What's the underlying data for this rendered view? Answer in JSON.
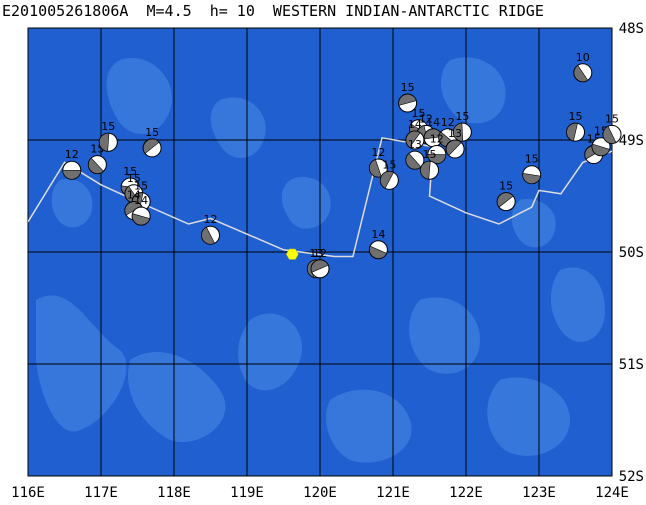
{
  "title": "E201005261806A  M=4.5  h= 10  WESTERN INDIAN-ANTARCTIC RIDGE",
  "map": {
    "lon_range": [
      116,
      124
    ],
    "lat_range": [
      -52,
      -48
    ],
    "lon_ticks": [
      "116E",
      "117E",
      "118E",
      "119E",
      "120E",
      "121E",
      "122E",
      "123E",
      "124E"
    ],
    "lat_ticks": [
      "48S",
      "49S",
      "50S",
      "51S",
      "52S"
    ],
    "colors": {
      "ocean": "#1f5fd0",
      "ocean_light": "#3f7fe0",
      "grid": "#000000",
      "ridge": "#dddddd",
      "epicenter": "#ffff00",
      "beachball_dark": "#707070"
    }
  },
  "epicenter": {
    "lon": 119.62,
    "lat": -50.02
  },
  "ridge_line": [
    [
      116.0,
      -49.73
    ],
    [
      116.5,
      -49.2
    ],
    [
      117.0,
      -49.4
    ],
    [
      117.5,
      -49.55
    ],
    [
      118.2,
      -49.75
    ],
    [
      118.5,
      -49.7
    ],
    [
      119.5,
      -49.98
    ],
    [
      120.2,
      -50.04
    ],
    [
      120.45,
      -50.04
    ],
    [
      120.85,
      -48.98
    ],
    [
      121.55,
      -49.06
    ],
    [
      121.5,
      -49.5
    ],
    [
      122.0,
      -49.65
    ],
    [
      122.45,
      -49.75
    ],
    [
      122.9,
      -49.6
    ],
    [
      123.0,
      -49.45
    ],
    [
      123.3,
      -49.48
    ],
    [
      123.6,
      -49.2
    ],
    [
      124.0,
      -49.1
    ]
  ],
  "mechanisms": [
    {
      "lon": 116.6,
      "lat": -49.27,
      "label": "12"
    },
    {
      "lon": 116.95,
      "lat": -49.22,
      "label": "15"
    },
    {
      "lon": 117.1,
      "lat": -49.02,
      "label": "15"
    },
    {
      "lon": 117.7,
      "lat": -49.07,
      "label": "15"
    },
    {
      "lon": 117.4,
      "lat": -49.42,
      "label": "15"
    },
    {
      "lon": 117.45,
      "lat": -49.48,
      "label": "15"
    },
    {
      "lon": 117.55,
      "lat": -49.55,
      "label": "15"
    },
    {
      "lon": 117.45,
      "lat": -49.63,
      "label": "14"
    },
    {
      "lon": 117.55,
      "lat": -49.68,
      "label": "14"
    },
    {
      "lon": 118.5,
      "lat": -49.85,
      "label": "12"
    },
    {
      "lon": 119.95,
      "lat": -50.15,
      "label": "13"
    },
    {
      "lon": 120.0,
      "lat": -50.15,
      "label": "12"
    },
    {
      "lon": 120.8,
      "lat": -49.98,
      "label": "14"
    },
    {
      "lon": 120.8,
      "lat": -49.25,
      "label": "12"
    },
    {
      "lon": 120.95,
      "lat": -49.36,
      "label": "15"
    },
    {
      "lon": 121.2,
      "lat": -48.67,
      "label": "15"
    },
    {
      "lon": 121.35,
      "lat": -48.9,
      "label": "15"
    },
    {
      "lon": 121.45,
      "lat": -48.95,
      "label": "12"
    },
    {
      "lon": 121.3,
      "lat": -49.0,
      "label": "14"
    },
    {
      "lon": 121.55,
      "lat": -48.98,
      "label": "14"
    },
    {
      "lon": 121.75,
      "lat": -48.98,
      "label": "12"
    },
    {
      "lon": 121.95,
      "lat": -48.93,
      "label": "15"
    },
    {
      "lon": 121.85,
      "lat": -49.08,
      "label": "13"
    },
    {
      "lon": 121.6,
      "lat": -49.13,
      "label": "12"
    },
    {
      "lon": 121.3,
      "lat": -49.18,
      "label": "13"
    },
    {
      "lon": 121.5,
      "lat": -49.27,
      "label": "15"
    },
    {
      "lon": 122.55,
      "lat": -49.55,
      "label": "15"
    },
    {
      "lon": 122.9,
      "lat": -49.31,
      "label": "15"
    },
    {
      "lon": 123.6,
      "lat": -48.4,
      "label": "10"
    },
    {
      "lon": 123.5,
      "lat": -48.93,
      "label": "15"
    },
    {
      "lon": 123.75,
      "lat": -49.13,
      "label": "15"
    },
    {
      "lon": 123.85,
      "lat": -49.06,
      "label": "15"
    },
    {
      "lon": 124.0,
      "lat": -48.95,
      "label": "15"
    }
  ]
}
